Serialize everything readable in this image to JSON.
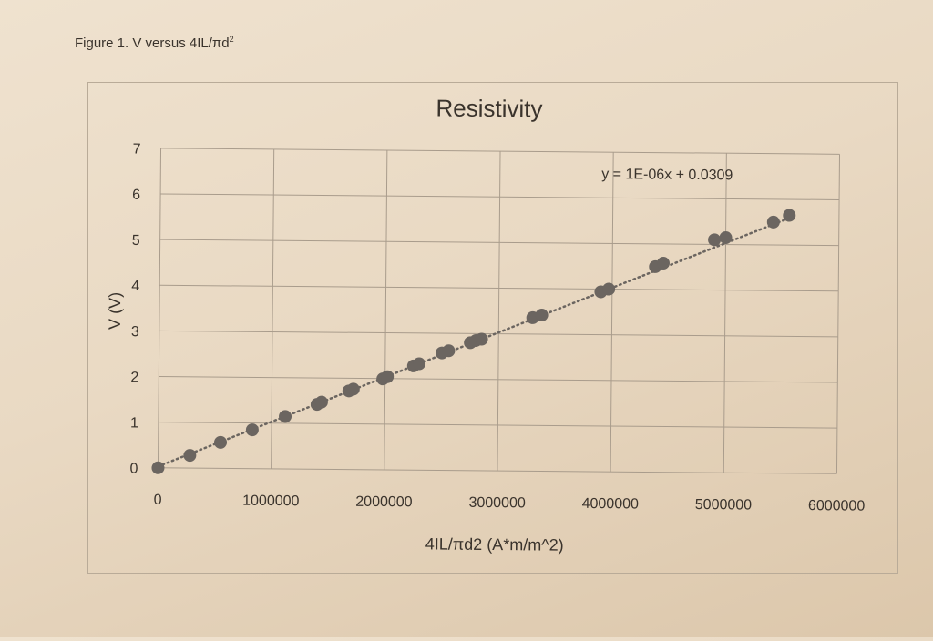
{
  "figure_caption": {
    "text": "Figure 1. V versus 4IL/πd",
    "superscript": "2"
  },
  "chart_data": {
    "type": "scatter",
    "title": "Resistivity",
    "xlabel": "4IL/πd2 (A*m/m^2)",
    "ylabel": "V (V)",
    "xlim": [
      0,
      6000000
    ],
    "ylim": [
      0,
      7
    ],
    "xticks": [
      "0",
      "1000000",
      "2000000",
      "3000000",
      "4000000",
      "5000000",
      "6000000"
    ],
    "yticks": [
      "0",
      "1",
      "2",
      "3",
      "4",
      "5",
      "6",
      "7"
    ],
    "grid": true,
    "marker_color": "#6b6560",
    "trendline": {
      "type": "linear",
      "style": "dotted",
      "slope": 1e-06,
      "intercept": 0.0309,
      "label": "y = 1E-06x + 0.0309"
    },
    "points": [
      [
        0,
        0
      ],
      [
        280000,
        0.28
      ],
      [
        550000,
        0.57
      ],
      [
        830000,
        0.85
      ],
      [
        1120000,
        1.15
      ],
      [
        1400000,
        1.42
      ],
      [
        1440000,
        1.47
      ],
      [
        1680000,
        1.72
      ],
      [
        1720000,
        1.76
      ],
      [
        1980000,
        1.99
      ],
      [
        2020000,
        2.04
      ],
      [
        2250000,
        2.28
      ],
      [
        2300000,
        2.33
      ],
      [
        2500000,
        2.57
      ],
      [
        2560000,
        2.62
      ],
      [
        2750000,
        2.8
      ],
      [
        2800000,
        2.85
      ],
      [
        2850000,
        2.88
      ],
      [
        3300000,
        3.36
      ],
      [
        3380000,
        3.42
      ],
      [
        3900000,
        3.94
      ],
      [
        3970000,
        4.0
      ],
      [
        4380000,
        4.5
      ],
      [
        4450000,
        4.58
      ],
      [
        4900000,
        5.1
      ],
      [
        5000000,
        5.15
      ],
      [
        5420000,
        5.5
      ],
      [
        5560000,
        5.65
      ]
    ]
  }
}
